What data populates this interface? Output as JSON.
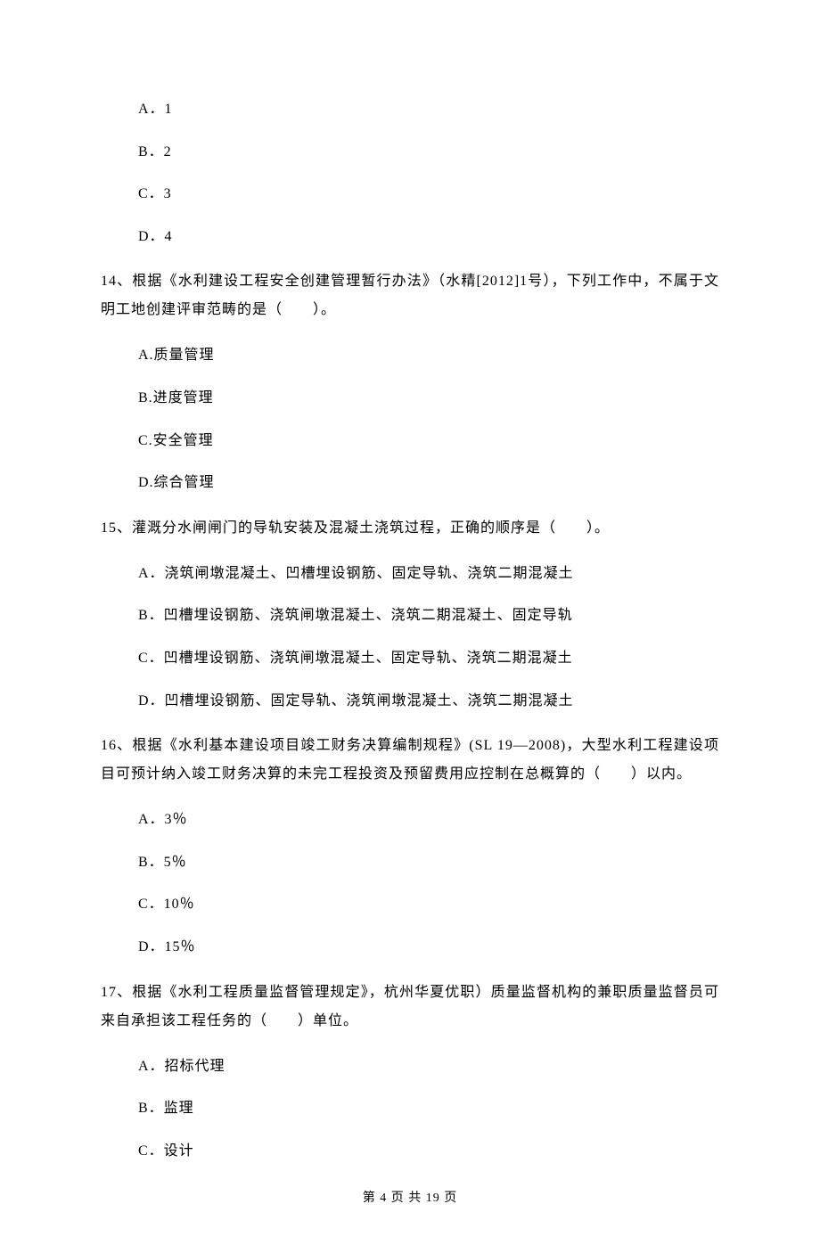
{
  "q13_options": {
    "a": "A．1",
    "b": "B．2",
    "c": "C．3",
    "d": "D．4"
  },
  "q14": {
    "text": "14、根据《水利建设工程安全创建管理暂行办法》（水精[2012]1号），下列工作中，不属于文明工地创建评审范畴的是（　　）。",
    "options": {
      "a": "A.质量管理",
      "b": "B.进度管理",
      "c": "C.安全管理",
      "d": "D.综合管理"
    }
  },
  "q15": {
    "text": "15、灌溉分水闸闸门的导轨安装及混凝土浇筑过程，正确的顺序是（　　）。",
    "options": {
      "a": "A．浇筑闸墩混凝土、凹槽埋设钢筋、固定导轨、浇筑二期混凝土",
      "b": "B．凹槽埋设钢筋、浇筑闸墩混凝土、浇筑二期混凝土、固定导轨",
      "c": "C．凹槽埋设钢筋、浇筑闸墩混凝土、固定导轨、浇筑二期混凝土",
      "d": "D．凹槽埋设钢筋、固定导轨、浇筑闸墩混凝土、浇筑二期混凝土"
    }
  },
  "q16": {
    "text": "16、根据《水利基本建设项目竣工财务决算编制规程》(SL 19—2008)，大型水利工程建设项目可预计纳入竣工财务决算的未完工程投资及预留费用应控制在总概算的（　　）以内。",
    "options": {
      "a": "A．3％",
      "b": "B．5％",
      "c": "C．10％",
      "d": "D．15％"
    }
  },
  "q17": {
    "text": "17、根据《水利工程质量监督管理规定》，杭州华夏优职）质量监督机构的兼职质量监督员可来自承担该工程任务的（　　）单位。",
    "options": {
      "a": "A．招标代理",
      "b": "B．监理",
      "c": "C．设计"
    }
  },
  "footer": "第 4 页 共 19 页"
}
